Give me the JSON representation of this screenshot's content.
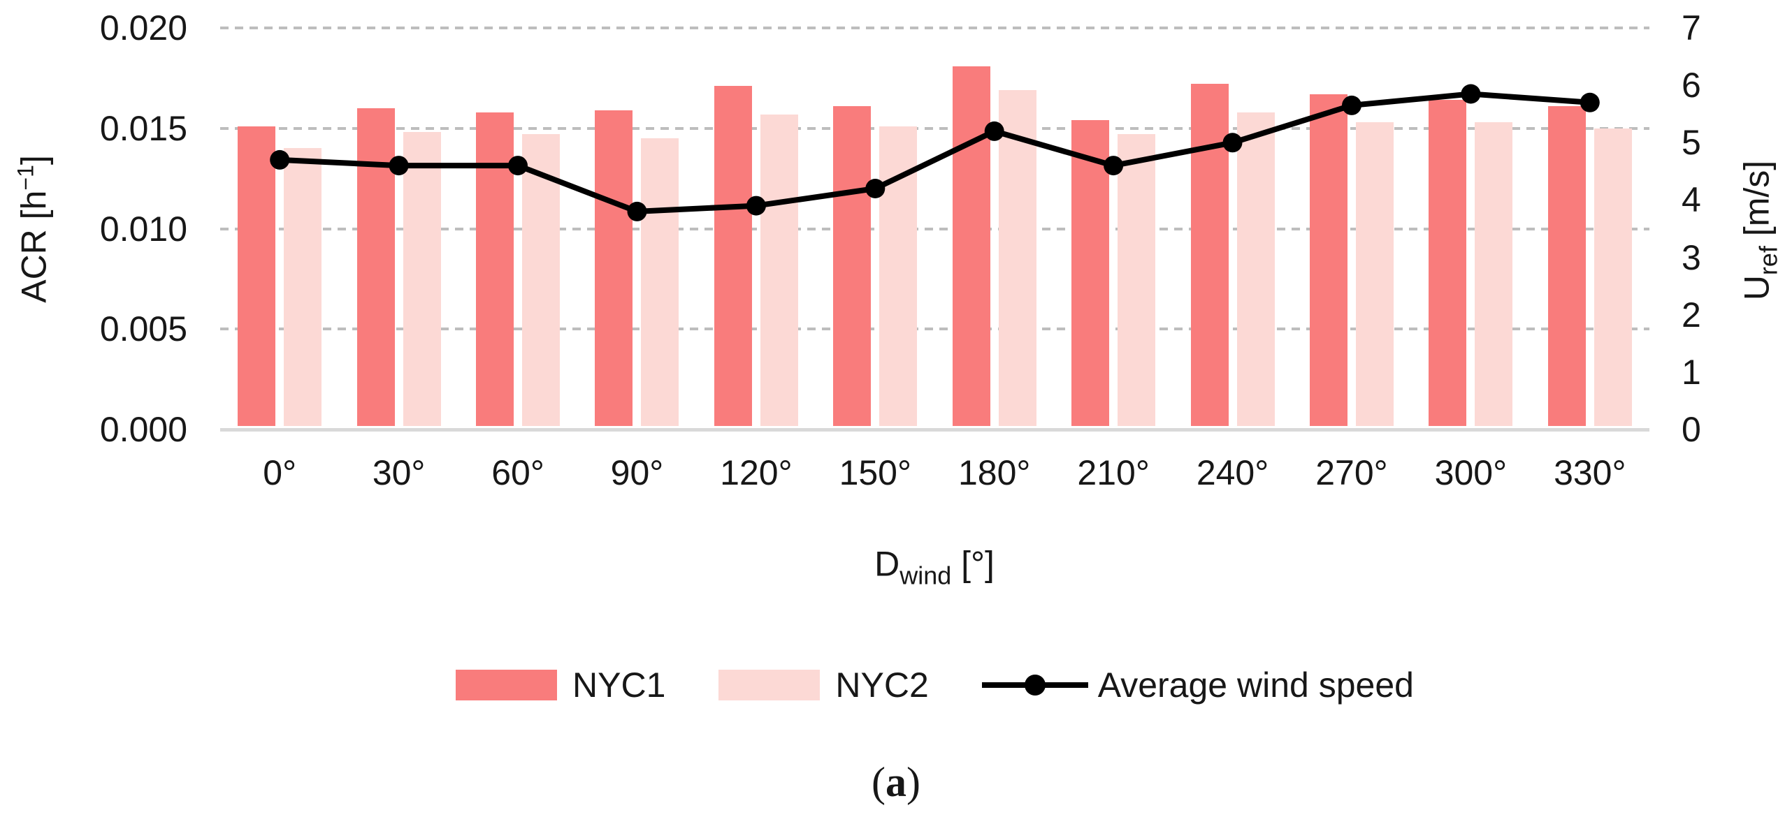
{
  "chart_data": {
    "type": "bar",
    "subtype": "grouped-bar-with-line-overlay",
    "title": "",
    "categories": [
      "0°",
      "30°",
      "60°",
      "90°",
      "120°",
      "150°",
      "180°",
      "210°",
      "240°",
      "270°",
      "300°",
      "330°"
    ],
    "series": [
      {
        "name": "NYC1",
        "type": "bar",
        "axis": "left",
        "color": "#F97C7C",
        "values": [
          0.0151,
          0.016,
          0.0158,
          0.0159,
          0.0171,
          0.0161,
          0.0181,
          0.0154,
          0.0172,
          0.0167,
          0.0164,
          0.0161
        ]
      },
      {
        "name": "NYC2",
        "type": "bar",
        "axis": "left",
        "color": "#FCD9D5",
        "values": [
          0.014,
          0.0148,
          0.0147,
          0.0145,
          0.0157,
          0.0151,
          0.0169,
          0.0147,
          0.0158,
          0.0153,
          0.0153,
          0.015
        ]
      },
      {
        "name": "Average wind speed",
        "type": "line",
        "axis": "right",
        "color": "#000000",
        "values": [
          4.7,
          4.6,
          4.6,
          3.8,
          3.9,
          4.2,
          5.2,
          4.6,
          5.0,
          5.65,
          5.85,
          5.7
        ]
      }
    ],
    "left_axis": {
      "label": "ACR [h⁻¹]",
      "min": 0,
      "max": 0.02,
      "step": 0.005,
      "tick_labels": [
        "0.000",
        "0.005",
        "0.010",
        "0.015",
        "0.020"
      ]
    },
    "right_axis": {
      "label": "Uref [m/s]",
      "min": 0,
      "max": 7,
      "step": 1,
      "tick_labels": [
        "0",
        "1",
        "2",
        "3",
        "4",
        "5",
        "6",
        "7"
      ]
    },
    "x_axis": {
      "label": "Dwind [°]"
    },
    "grid": true,
    "legend_position": "bottom"
  },
  "axes_text": {
    "left_title": {
      "t1": "ACR [h",
      "sup": "−1",
      "t2": "]"
    },
    "right_title": {
      "t1": "U",
      "sub": "ref",
      "t2": " [m/s]"
    },
    "x_title": {
      "t1": "D",
      "sub": "wind",
      "t2": " [°]"
    }
  },
  "caption": {
    "open": "(",
    "letter": "a",
    "close": ")"
  }
}
